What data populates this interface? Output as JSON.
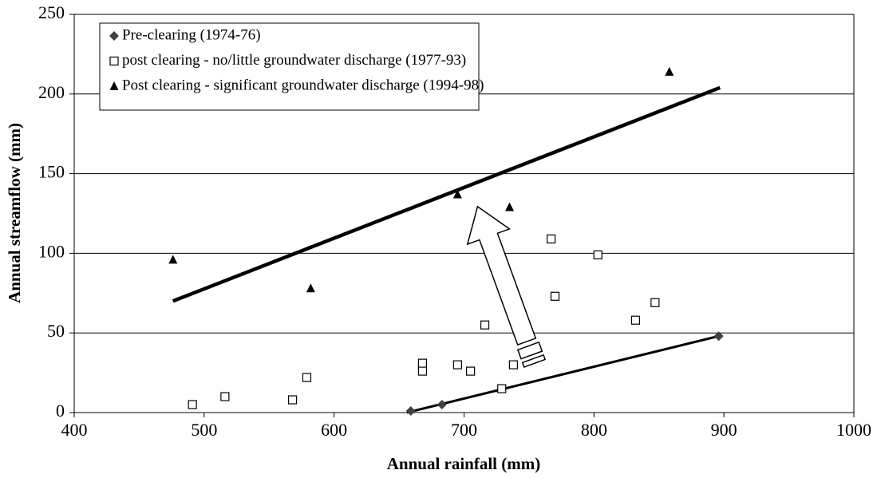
{
  "chart_data": {
    "type": "scatter",
    "x_label": "Annual rainfall (mm)",
    "y_label": "Annual streamflow (mm)",
    "xlim": [
      400,
      1000
    ],
    "xticks": [
      400,
      500,
      600,
      700,
      800,
      900,
      1000
    ],
    "ylim": [
      0,
      250
    ],
    "yticks": [
      0,
      50,
      100,
      150,
      200,
      250
    ],
    "grid": true,
    "legend": "top-left",
    "series": [
      {
        "name": "Pre-clearing (1974-76)",
        "marker": "diamond",
        "color": "#404040",
        "x": [
          659,
          683,
          896
        ],
        "y": [
          1,
          5,
          48
        ],
        "trend": {
          "x": [
            656,
            896
          ],
          "y": [
            0,
            48
          ]
        }
      },
      {
        "name": "post clearing - no/little groundwater discharge (1977-93)",
        "marker": "square",
        "color": "#000000",
        "x": [
          491,
          516,
          568,
          579,
          668,
          668,
          695,
          705,
          716,
          729,
          738,
          767,
          770,
          803,
          832,
          847
        ],
        "y": [
          5,
          10,
          8,
          22,
          31,
          26,
          30,
          26,
          55,
          15,
          30,
          109,
          73,
          99,
          58,
          69
        ]
      },
      {
        "name": "Post clearing - significant groundwater discharge (1994-98)",
        "marker": "triangle",
        "color": "#000000",
        "x": [
          476,
          582,
          695,
          735,
          858
        ],
        "y": [
          96,
          78,
          137,
          129,
          214
        ],
        "trend": {
          "x": [
            476,
            897
          ],
          "y": [
            70,
            204
          ]
        }
      }
    ]
  }
}
